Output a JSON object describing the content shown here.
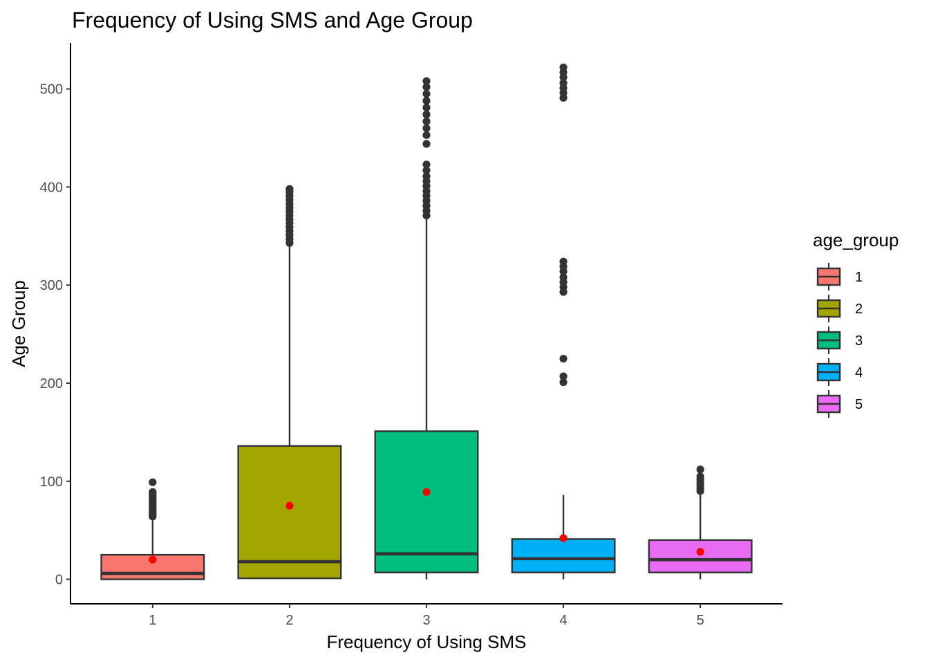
{
  "chart_data": {
    "type": "box",
    "title": "Frequency of Using SMS and Age Group",
    "xlabel": "Frequency of Using SMS",
    "ylabel": "Age Group",
    "ylim": [
      -25,
      547
    ],
    "y_ticks": [
      0,
      100,
      200,
      300,
      400,
      500
    ],
    "categories": [
      "1",
      "2",
      "3",
      "4",
      "5"
    ],
    "grid": false,
    "legend": {
      "title": "age_group",
      "position": "right",
      "entries": [
        {
          "label": "1",
          "color": "#F8766D"
        },
        {
          "label": "2",
          "color": "#A3A500"
        },
        {
          "label": "3",
          "color": "#00BF7D"
        },
        {
          "label": "4",
          "color": "#00B0F6"
        },
        {
          "label": "5",
          "color": "#E76BF3"
        }
      ]
    },
    "mean_marker_color": "#FF0000",
    "boxes": [
      {
        "category": "1",
        "whisker_low": 0,
        "q1": 0,
        "median": 6,
        "q3": 25,
        "whisker_high": 62,
        "mean": 20,
        "outliers": [
          64,
          66,
          68,
          70,
          72,
          74,
          76,
          78,
          80,
          82,
          84,
          86,
          88,
          89,
          99
        ]
      },
      {
        "category": "2",
        "whisker_low": 1,
        "q1": 1,
        "median": 18,
        "q3": 136,
        "whisker_high": 340,
        "mean": 75,
        "outliers": [
          343,
          347,
          351,
          355,
          359,
          363,
          367,
          371,
          375,
          379,
          383,
          387,
          391,
          395,
          398
        ]
      },
      {
        "category": "3",
        "whisker_low": 0,
        "q1": 7,
        "median": 26,
        "q3": 151,
        "whisker_high": 368,
        "mean": 89,
        "outliers": [
          371,
          376,
          381,
          386,
          391,
          396,
          401,
          406,
          411,
          417,
          423,
          444,
          453,
          460,
          467,
          474,
          481,
          488,
          495,
          502,
          508
        ]
      },
      {
        "category": "4",
        "whisker_low": 0,
        "q1": 7,
        "median": 21,
        "q3": 41,
        "whisker_high": 86,
        "mean": 42,
        "outliers": [
          201,
          207,
          225,
          293,
          298,
          303,
          308,
          314,
          319,
          324,
          491,
          496,
          501,
          506,
          512,
          517,
          522
        ]
      },
      {
        "category": "5",
        "whisker_low": 0,
        "q1": 7,
        "median": 20,
        "q3": 40,
        "whisker_high": 88,
        "mean": 28,
        "outliers": [
          90,
          93,
          96,
          99,
          102,
          105,
          112
        ]
      }
    ]
  }
}
